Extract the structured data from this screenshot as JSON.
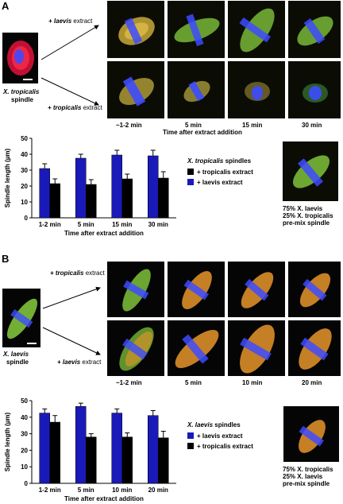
{
  "panel_a": {
    "letter": "A",
    "source_label_italic": "X. tropicalis",
    "source_label": "spindle",
    "arrow_top_label_italic": "+ laevis",
    "arrow_top_label": " extract",
    "arrow_bottom_label_italic": "+ tropicalis",
    "arrow_bottom_label": " extract",
    "time_labels": [
      "~1-2 min",
      "5 min",
      "15 min",
      "30 min"
    ],
    "time_axis_title": "Time after extract addition",
    "premix_caption": [
      "75% X. laevis",
      "25% X. tropicalis",
      "pre-mix spindle"
    ],
    "legend_title_italic": "X. tropicalis",
    "legend_title": " spindles",
    "legend_items": [
      "+ tropicalis extract",
      "+ laevis extract"
    ]
  },
  "panel_b": {
    "letter": "B",
    "source_label_italic": "X. laevis",
    "source_label": "spindle",
    "arrow_top_label_italic": "+ tropicalis",
    "arrow_top_label": " extract",
    "arrow_bottom_label_italic": "+ laevis",
    "arrow_bottom_label": " extract",
    "time_labels": [
      "~1-2 min",
      "5 min",
      "10 min",
      "20 min"
    ],
    "time_axis_title": "Time after extract addition",
    "premix_caption": [
      "75% X. tropicalis",
      "25% X. laevis",
      "pre-mix spindle"
    ],
    "legend_title_italic": "X. laevis",
    "legend_title": " spindles",
    "legend_items": [
      "+ laevis extract",
      "+ tropicalis extract"
    ]
  },
  "colors": {
    "blue_bar": "#1a1ab8",
    "black_bar": "#000000",
    "microtubule_green": "#7fc23a",
    "microtubule_orange": "#e8952a",
    "dna_blue": "#3d4bff",
    "red": "#e0203a"
  },
  "chart_data": [
    {
      "type": "bar",
      "title": "",
      "xlabel": "Time after extract addition",
      "ylabel": "Spindle length (µm)",
      "ylim": [
        0,
        50
      ],
      "yticks": [
        0,
        10,
        20,
        30,
        40,
        50
      ],
      "categories": [
        "1-2 min",
        "5 min",
        "15 min",
        "30 min"
      ],
      "legend_title": "X. tropicalis spindles",
      "series": [
        {
          "name": "+ laevis extract",
          "color": "#1a1ab8",
          "values": [
            31,
            37.5,
            39.5,
            39
          ],
          "errors": [
            3,
            2.5,
            3,
            3.5
          ]
        },
        {
          "name": "+ tropicalis extract",
          "color": "#000000",
          "values": [
            21.5,
            21,
            24.5,
            25
          ],
          "errors": [
            3,
            3,
            3,
            4
          ]
        }
      ]
    },
    {
      "type": "bar",
      "title": "",
      "xlabel": "Time after extract addition",
      "ylabel": "Spindle length (µm)",
      "ylim": [
        0,
        50
      ],
      "yticks": [
        0,
        10,
        20,
        30,
        40,
        50
      ],
      "categories": [
        "1-2 min",
        "5 min",
        "10 min",
        "20 min"
      ],
      "legend_title": "X. laevis spindles",
      "series": [
        {
          "name": "+ laevis extract",
          "color": "#1a1ab8",
          "values": [
            42.5,
            46.5,
            42.5,
            41
          ],
          "errors": [
            2.5,
            2,
            2.5,
            3
          ]
        },
        {
          "name": "+ tropicalis extract",
          "color": "#000000",
          "values": [
            37,
            28,
            28,
            27.5
          ],
          "errors": [
            4,
            2,
            2.5,
            4
          ]
        }
      ]
    }
  ]
}
